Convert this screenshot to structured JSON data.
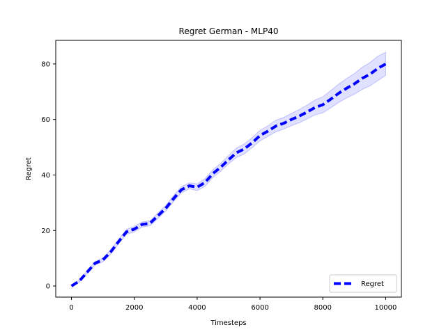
{
  "chart_data": {
    "type": "line",
    "title": "Regret German - MLP40",
    "xlabel": "Timesteps",
    "ylabel": "Regret",
    "xlim": [
      -500,
      10500
    ],
    "ylim": [
      -4,
      88.5
    ],
    "xticks": [
      0,
      2000,
      4000,
      6000,
      8000,
      10000
    ],
    "xtick_labels": [
      "0",
      "2000",
      "4000",
      "6000",
      "8000",
      "10000"
    ],
    "yticks": [
      0,
      20,
      40,
      60,
      80
    ],
    "ytick_labels": [
      "0",
      "20",
      "40",
      "60",
      "80"
    ],
    "grid": false,
    "legend_position": "lower right",
    "series": [
      {
        "name": "Regret",
        "color": "#0000ff",
        "line_style": "dashed",
        "band_color": "#0000ff",
        "x": [
          0,
          250,
          500,
          750,
          1000,
          1250,
          1500,
          1750,
          2000,
          2250,
          2500,
          2750,
          3000,
          3250,
          3500,
          3750,
          4000,
          4250,
          4500,
          4750,
          5000,
          5250,
          5500,
          5750,
          6000,
          6250,
          6500,
          6750,
          7000,
          7250,
          7500,
          7750,
          8000,
          8250,
          8500,
          8750,
          9000,
          9250,
          9500,
          9750,
          10000
        ],
        "values": [
          0,
          1.8,
          5.0,
          8.2,
          9.4,
          12.3,
          16.0,
          19.5,
          20.5,
          22.2,
          22.6,
          25.3,
          28.0,
          31.5,
          34.7,
          36.1,
          35.6,
          37.3,
          40.5,
          42.8,
          45.5,
          48.0,
          49.4,
          51.6,
          54.2,
          55.8,
          57.6,
          58.6,
          60.0,
          61.2,
          62.7,
          64.3,
          65.3,
          67.3,
          69.4,
          71.2,
          72.8,
          74.8,
          76.3,
          78.4,
          80.0
        ],
        "lower": [
          0,
          1.4,
          4.5,
          7.6,
          8.7,
          11.5,
          15.2,
          18.6,
          19.5,
          21.3,
          21.7,
          24.3,
          27.0,
          30.4,
          33.6,
          35.0,
          34.4,
          35.9,
          39.1,
          41.4,
          44.0,
          46.3,
          47.6,
          49.8,
          52.3,
          53.9,
          55.5,
          56.5,
          57.8,
          58.8,
          60.2,
          61.6,
          62.4,
          64.2,
          66.1,
          67.7,
          69.1,
          70.8,
          72.1,
          74.0,
          75.9
        ],
        "upper": [
          0,
          2.2,
          5.5,
          8.8,
          10.1,
          13.1,
          16.8,
          20.4,
          21.5,
          23.1,
          23.5,
          26.3,
          29.0,
          32.6,
          35.8,
          37.2,
          36.8,
          38.7,
          41.9,
          44.2,
          47.0,
          49.7,
          51.2,
          53.4,
          56.1,
          57.7,
          59.7,
          60.7,
          62.2,
          63.6,
          65.2,
          67.0,
          68.2,
          70.4,
          72.7,
          74.7,
          76.5,
          78.8,
          80.5,
          82.8,
          84.2
        ]
      }
    ]
  }
}
